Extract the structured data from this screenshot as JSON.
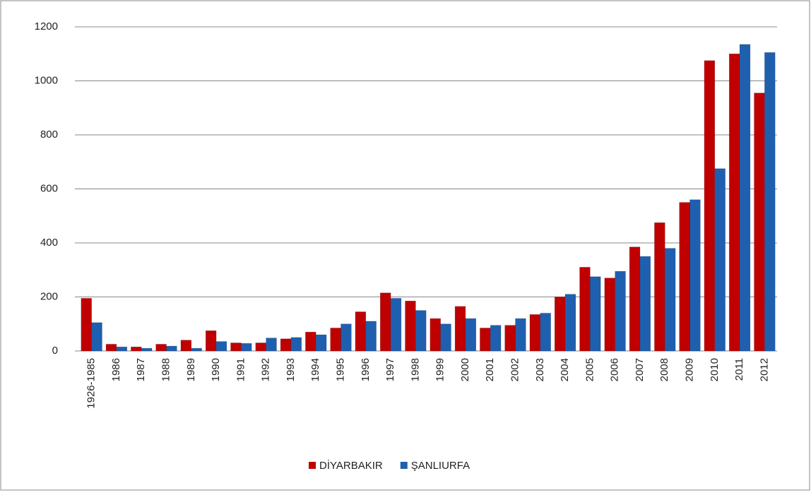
{
  "chart_data": {
    "type": "bar",
    "categories": [
      "1926-1985",
      "1986",
      "1987",
      "1988",
      "1989",
      "1990",
      "1991",
      "1992",
      "1993",
      "1994",
      "1995",
      "1996",
      "1997",
      "1998",
      "1999",
      "2000",
      "2001",
      "2002",
      "2003",
      "2004",
      "2005",
      "2006",
      "2007",
      "2008",
      "2009",
      "2010",
      "2011",
      "2012"
    ],
    "series": [
      {
        "name": "DİYARBAKIR",
        "color": "#c00000",
        "values": [
          195,
          25,
          15,
          25,
          40,
          75,
          30,
          30,
          45,
          70,
          85,
          145,
          215,
          185,
          120,
          165,
          85,
          95,
          135,
          200,
          310,
          270,
          385,
          475,
          550,
          1075,
          1100,
          955
        ]
      },
      {
        "name": "ŞANLIURFA",
        "color": "#1f5fb0",
        "values": [
          105,
          15,
          10,
          18,
          10,
          35,
          28,
          48,
          50,
          60,
          100,
          110,
          195,
          150,
          100,
          120,
          95,
          120,
          140,
          210,
          275,
          295,
          350,
          380,
          560,
          675,
          1135,
          1105
        ]
      }
    ],
    "ylim": [
      0,
      1200
    ],
    "yticks": [
      0,
      200,
      400,
      600,
      800,
      1000,
      1200
    ],
    "grid": true,
    "legend": "bottom"
  }
}
